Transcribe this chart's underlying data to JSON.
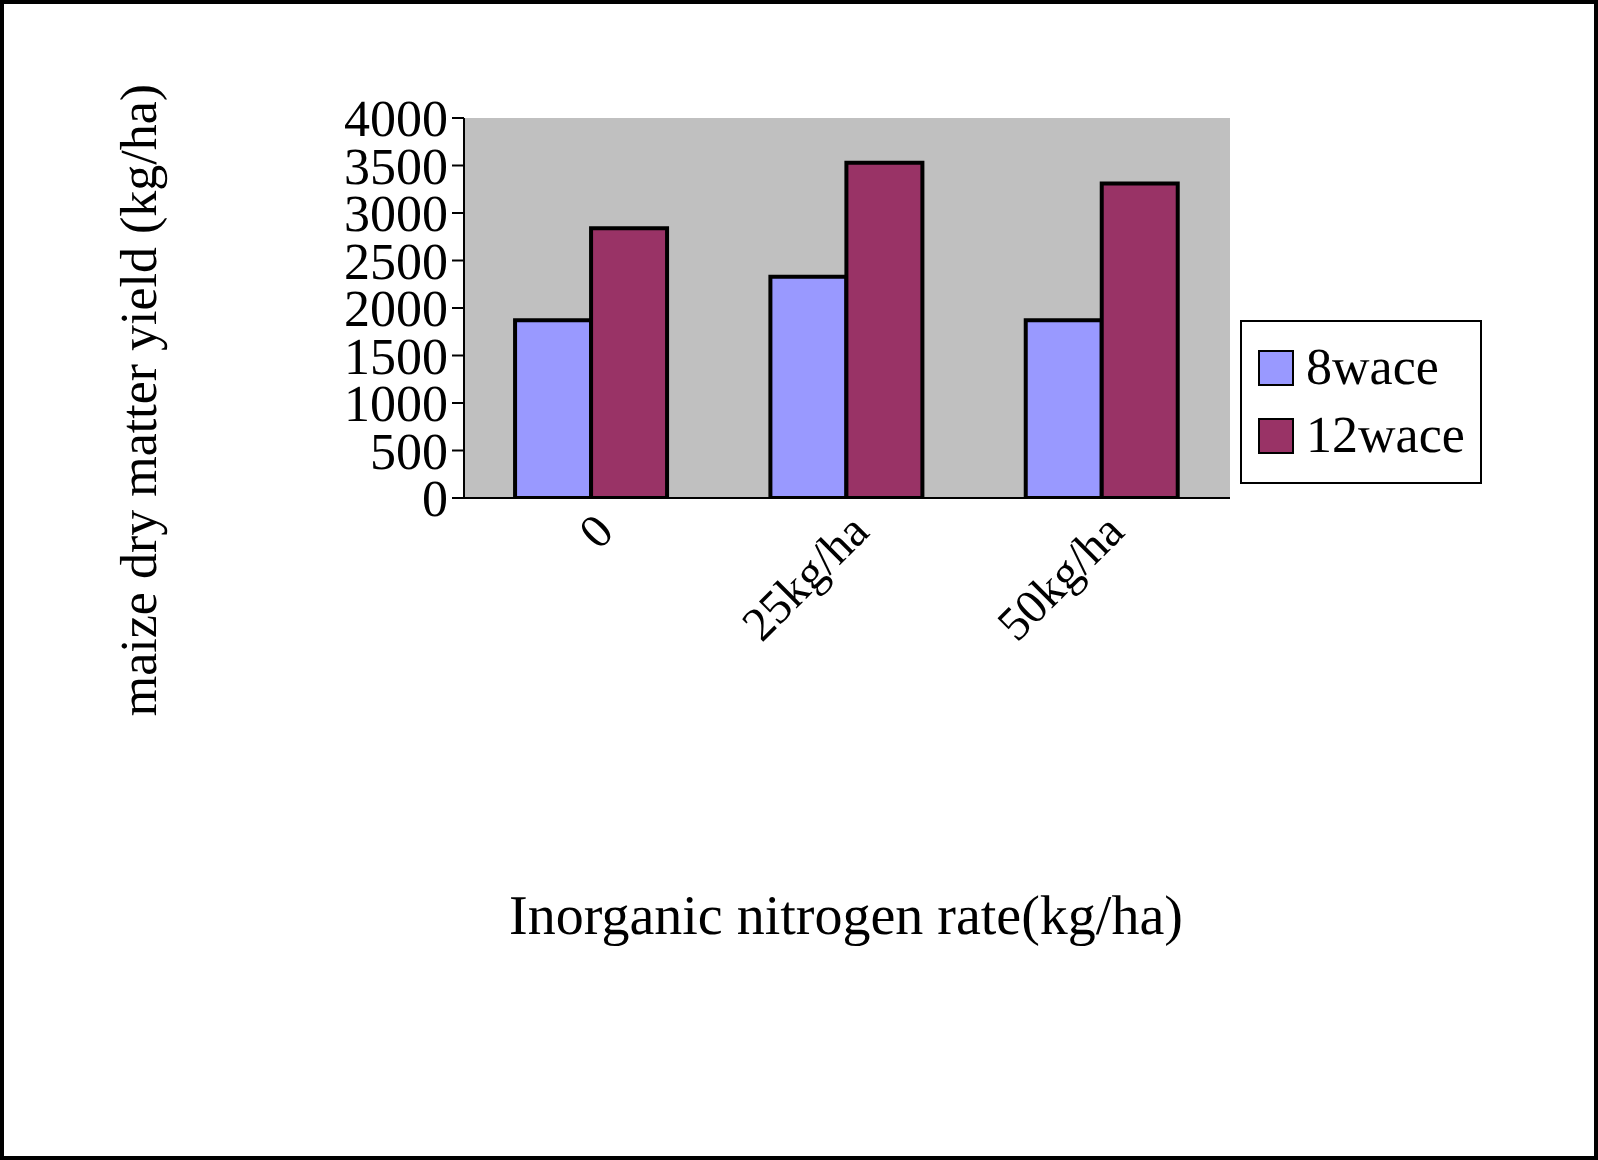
{
  "chart_data": {
    "type": "bar",
    "xlabel": "Inorganic nitrogen rate(kg/ha)",
    "ylabel": "maize dry matter yield (kg/ha)",
    "categories": [
      "0",
      "25kg/ha",
      "50kg/ha"
    ],
    "series": [
      {
        "name": "8wace",
        "color": "#9999ff",
        "values": [
          1870,
          2330,
          1870
        ]
      },
      {
        "name": "12wace",
        "color": "#993366",
        "values": [
          2840,
          3530,
          3310
        ]
      }
    ],
    "ylim": [
      0,
      4000
    ],
    "yticks": [
      0,
      500,
      1000,
      1500,
      2000,
      2500,
      3000,
      3500,
      4000
    ],
    "grid": false,
    "legend": "right"
  }
}
